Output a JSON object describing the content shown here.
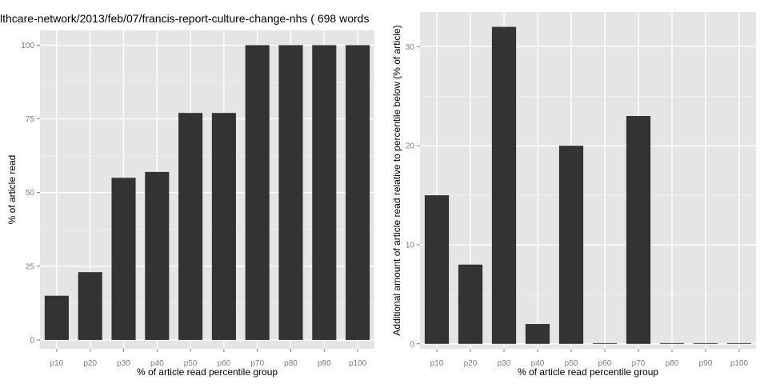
{
  "chart_data": [
    {
      "type": "bar",
      "title": "lthcare-network/2013/feb/07/francis-report-culture-change-nhs ( 698 words",
      "xlabel": "% of article read percentile group",
      "ylabel": "% of article read",
      "categories": [
        "p10",
        "p20",
        "p30",
        "p40",
        "p50",
        "p60",
        "p70",
        "p80",
        "p90",
        "p100"
      ],
      "values": [
        15,
        23,
        55,
        57,
        77,
        77,
        100,
        100,
        100,
        100
      ],
      "ylim": [
        -3,
        105
      ],
      "yticks": [
        0,
        25,
        50,
        75,
        100
      ],
      "bar_color": "#333333",
      "panel_color": "#e5e5e5",
      "grid": true
    },
    {
      "type": "bar",
      "title": "",
      "xlabel": "% of article read percentile group",
      "ylabel": "Additional amount of article read relative to percentile below (% of article)",
      "categories": [
        "p10",
        "p20",
        "p30",
        "p40",
        "p50",
        "p60",
        "p70",
        "p80",
        "p90",
        "p100"
      ],
      "values": [
        15,
        8,
        32,
        2,
        20,
        0,
        23,
        0,
        0,
        0
      ],
      "ylim": [
        -0.5,
        33.5
      ],
      "yticks": [
        0,
        10,
        20,
        30
      ],
      "bar_color": "#333333",
      "panel_color": "#e5e5e5",
      "grid": true
    }
  ]
}
